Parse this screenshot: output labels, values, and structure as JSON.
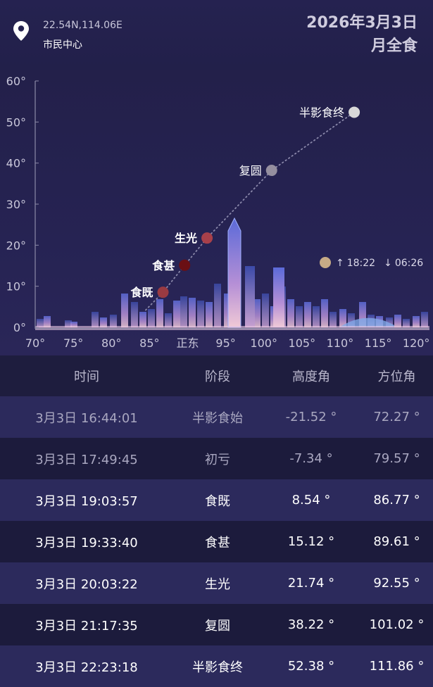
{
  "location": {
    "coords": "22.54N,114.06E",
    "name": "市民中心"
  },
  "event": {
    "date": "2026年3月3日",
    "type": "月全食"
  },
  "colors": {
    "accent_moon": "#b04040",
    "dark_moon": "#6a0f14",
    "path_dots": "#8a88aa"
  },
  "chart_data": {
    "type": "scatter",
    "title": "",
    "xlabel": "",
    "ylabel": "",
    "xlim": [
      70,
      121
    ],
    "ylim": [
      0,
      60
    ],
    "x_ticks": [
      {
        "value": 70,
        "label": "70°"
      },
      {
        "value": 75,
        "label": "75°"
      },
      {
        "value": 80,
        "label": "80°"
      },
      {
        "value": 85,
        "label": "85°"
      },
      {
        "value": 90,
        "label": "正东"
      },
      {
        "value": 95,
        "label": "95°"
      },
      {
        "value": 100,
        "label": "100°"
      },
      {
        "value": 105,
        "label": "105°"
      },
      {
        "value": 110,
        "label": "110°"
      },
      {
        "value": 115,
        "label": "115°"
      },
      {
        "value": 120,
        "label": "120°"
      }
    ],
    "y_ticks": [
      {
        "value": 0,
        "label": "0°"
      },
      {
        "value": 10,
        "label": "10°"
      },
      {
        "value": 20,
        "label": "20°"
      },
      {
        "value": 30,
        "label": "30°"
      },
      {
        "value": 40,
        "label": "40°"
      },
      {
        "value": 50,
        "label": "50°"
      },
      {
        "value": 60,
        "label": "60°"
      }
    ],
    "points": [
      {
        "label": "食既",
        "azimuth": 86.77,
        "altitude": 8.54,
        "color": "#9a3a42",
        "bold": true
      },
      {
        "label": "食甚",
        "azimuth": 89.61,
        "altitude": 15.12,
        "color": "#6a0f14",
        "bold": true
      },
      {
        "label": "生光",
        "azimuth": 92.55,
        "altitude": 21.74,
        "color": "#a8404a",
        "bold": true
      },
      {
        "label": "复圆",
        "azimuth": 101.02,
        "altitude": 38.22,
        "color": "#958f9f",
        "bold": false
      },
      {
        "label": "半影食终",
        "azimuth": 111.86,
        "altitude": 52.38,
        "color": "#d8d8d8",
        "bold": false
      }
    ],
    "moonrise_set": {
      "rise": "18:22",
      "set": "06:26",
      "rise_arrow": "↑",
      "set_arrow": "↓"
    },
    "grid": false
  },
  "table": {
    "headers": [
      "时间",
      "阶段",
      "高度角",
      "方位角"
    ],
    "rows": [
      {
        "time": "3月3日 16:44:01",
        "phase": "半影食始",
        "alt": "-21.52 °",
        "az": "72.27 °",
        "style": "dim"
      },
      {
        "time": "3月3日 17:49:45",
        "phase": "初亏",
        "alt": "-7.34 °",
        "az": "79.57 °",
        "style": "dim"
      },
      {
        "time": "3月3日 19:03:57",
        "phase": "食既",
        "alt": "8.54 °",
        "az": "86.77 °",
        "style": "bright"
      },
      {
        "time": "3月3日 19:33:40",
        "phase": "食甚",
        "alt": "15.12 °",
        "az": "89.61 °",
        "style": "bright"
      },
      {
        "time": "3月3日 20:03:22",
        "phase": "生光",
        "alt": "21.74 °",
        "az": "92.55 °",
        "style": "bright"
      },
      {
        "time": "3月3日 21:17:35",
        "phase": "复圆",
        "alt": "38.22 °",
        "az": "101.02 °",
        "style": "bright"
      },
      {
        "time": "3月3日 22:23:18",
        "phase": "半影食终",
        "alt": "52.38 °",
        "az": "111.86 °",
        "style": "bright"
      }
    ]
  }
}
